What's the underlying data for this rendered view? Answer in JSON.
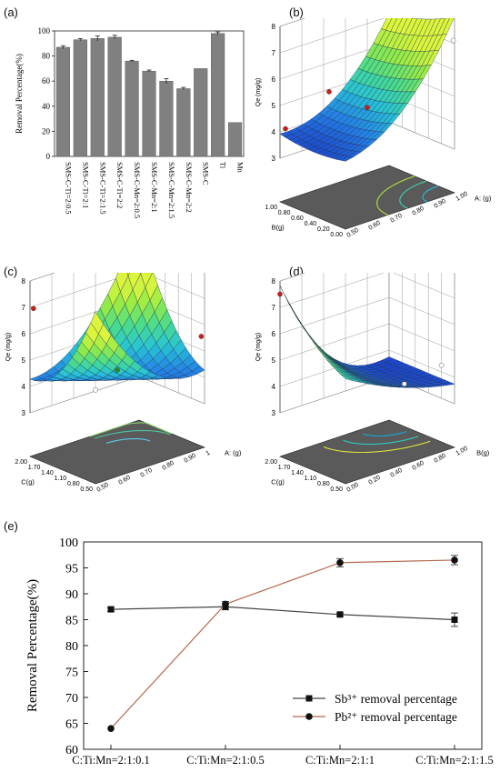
{
  "panels": {
    "a": {
      "label": "(a)"
    },
    "b": {
      "label": "(b)"
    },
    "c": {
      "label": "(c)"
    },
    "d": {
      "label": "(d)"
    },
    "e": {
      "label": "(e)"
    }
  },
  "chart_data": [
    {
      "id": "a",
      "type": "bar",
      "title": "",
      "xlabel": "",
      "ylabel": "Removal Percentage(%)",
      "ylim": [
        0,
        100
      ],
      "yticks": [
        0,
        20,
        40,
        60,
        80,
        100
      ],
      "categories": [
        "SMS-C-Ti=2:0.5",
        "SMS-C-Ti=2:1",
        "SMS-C-Ti=2:1.5",
        "SMS-C-Ti=2:2",
        "SMS-C-Mn=2:0.5",
        "SMS-C-Mn=2:1",
        "SMS-C-Mn=2:1.5",
        "SMS-C-Mn=2:2",
        "SMS-C",
        "Ti",
        "Mn"
      ],
      "values": [
        87,
        93,
        94,
        95,
        76,
        68,
        60,
        54,
        70,
        98,
        27
      ],
      "errors": [
        1.2,
        0.8,
        2,
        1.5,
        0.6,
        0.8,
        2,
        1,
        0,
        1.2,
        0
      ],
      "bar_color": "#808080"
    },
    {
      "id": "b",
      "type": "surface",
      "zlabel": "Qe (mg/g)",
      "zticks": [
        "3",
        "4",
        "5",
        "6",
        "7",
        "8"
      ],
      "left_axis": {
        "label": "B(g)",
        "ticks": [
          "1.00",
          "0.80",
          "0.60",
          "0.40",
          "0.20",
          "0.00"
        ]
      },
      "right_axis": {
        "label": "A: (g)",
        "ticks": [
          "0.50",
          "0.60",
          "0.70",
          "0.80",
          "0.90",
          "1.00"
        ]
      }
    },
    {
      "id": "c",
      "type": "surface",
      "zlabel": "Qe (mg/g)",
      "zticks": [
        "3",
        "4",
        "5",
        "6",
        "7",
        "8"
      ],
      "left_axis": {
        "label": "C(g)",
        "ticks": [
          "2.00",
          "1.70",
          "1.40",
          "1.10",
          "0.80",
          "0.50"
        ]
      },
      "right_axis": {
        "label": "A: (g)",
        "ticks": [
          "0.50",
          "0.60",
          "0.70",
          "0.80",
          "0.90",
          "1"
        ]
      }
    },
    {
      "id": "d",
      "type": "surface",
      "zlabel": "Qe (mg/g)",
      "zticks": [
        "3",
        "4",
        "5",
        "6",
        "7",
        "8"
      ],
      "left_axis": {
        "label": "C(g)",
        "ticks": [
          "2.00",
          "1.70",
          "1.40",
          "1.10",
          "0.80",
          "0.50"
        ]
      },
      "right_axis": {
        "label": "B(g)",
        "ticks": [
          "0.00",
          "0.20",
          "0.40",
          "0.60",
          "0.80",
          "1.00"
        ]
      }
    },
    {
      "id": "e",
      "type": "line",
      "title": "",
      "xlabel": "",
      "ylabel": "Removal Percentage(%)",
      "ylim": [
        60,
        100
      ],
      "yticks": [
        60,
        65,
        70,
        75,
        80,
        85,
        90,
        95,
        100
      ],
      "categories": [
        "C:Ti:Mn=2:1:0.1",
        "C:Ti:Mn=2:1:0.5",
        "C:Ti:Mn=2:1:1",
        "C:Ti:Mn=2:1:1.5"
      ],
      "legend_position": "bottom-right",
      "series": [
        {
          "name": "Sb³⁺ removal percentage",
          "values": [
            87,
            87.5,
            86,
            85
          ],
          "errors": [
            0.4,
            0.6,
            0.3,
            1.3
          ],
          "color": "#444444",
          "marker": "square"
        },
        {
          "name": "Pb²⁺ removal percentage",
          "values": [
            64,
            88,
            96,
            96.5
          ],
          "errors": [
            0,
            0.5,
            0.8,
            0.9
          ],
          "color": "#b5674d",
          "marker": "circle"
        }
      ]
    }
  ]
}
